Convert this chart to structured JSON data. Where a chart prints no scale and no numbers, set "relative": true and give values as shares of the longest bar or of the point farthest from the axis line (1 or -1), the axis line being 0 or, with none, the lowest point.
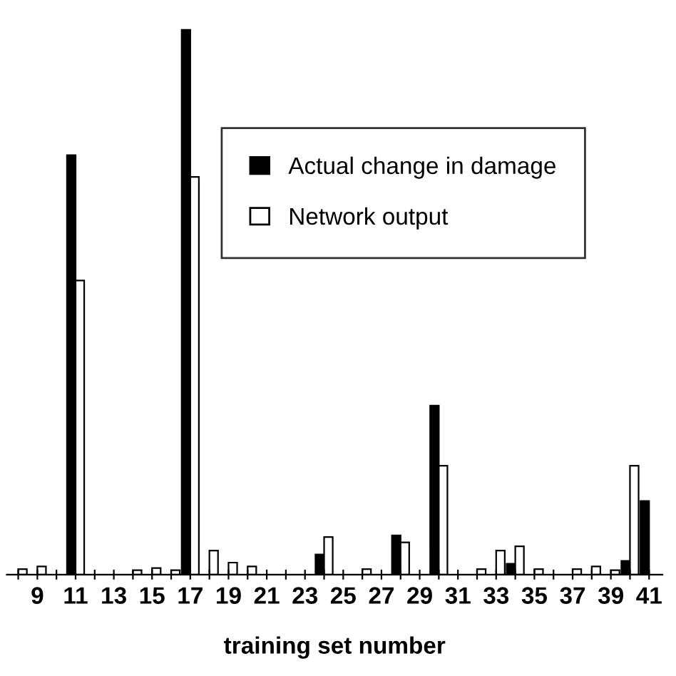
{
  "chart_data": {
    "type": "bar",
    "relative": true,
    "xlabel": "training set number",
    "categories": [
      null,
      "9",
      null,
      "11",
      null,
      "13",
      null,
      "15",
      null,
      "17",
      null,
      "19",
      null,
      "21",
      null,
      "23",
      null,
      "25",
      null,
      "27",
      null,
      "29",
      null,
      "31",
      null,
      "33",
      null,
      "35",
      null,
      "37",
      null,
      "39",
      null,
      "41"
    ],
    "series": [
      {
        "name": "Actual change in damage",
        "color": "#000000",
        "values": [
          0,
          0,
          0,
          0.77,
          0,
          0,
          0,
          0,
          0,
          1,
          0,
          0,
          0,
          0,
          0,
          0,
          0.037,
          0,
          0,
          0,
          0.072,
          0,
          0.31,
          0,
          0,
          0,
          0.02,
          0,
          0,
          0,
          0,
          0,
          0.025,
          0.135
        ]
      },
      {
        "name": "Network output",
        "color": "#ffffff",
        "values": [
          0.01,
          0.015,
          0,
          0.54,
          0,
          0,
          0.008,
          0.012,
          0.008,
          0.73,
          0.044,
          0.022,
          0.015,
          0,
          0,
          0,
          0.069,
          0,
          0.01,
          0,
          0.059,
          0,
          0.2,
          0,
          0.01,
          0.044,
          0.052,
          0.01,
          0,
          0.01,
          0.015,
          0.008,
          0.2,
          null
        ]
      }
    ],
    "legend": "right"
  }
}
